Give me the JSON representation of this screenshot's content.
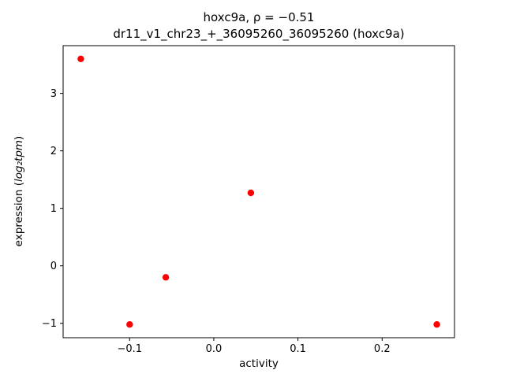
{
  "chart_data": {
    "type": "scatter",
    "title": "hoxc9a, ρ = −0.51",
    "subtitle": "dr11_v1_chr23_+_36095260_36095260 (hoxc9a)",
    "xlabel": "activity",
    "ylabel_prefix": "expression (",
    "ylabel_math": "log₂tpm",
    "ylabel_suffix": ")",
    "x": [
      -0.158,
      -0.1,
      -0.057,
      0.044,
      0.265
    ],
    "y": [
      3.6,
      -1.02,
      -0.2,
      1.27,
      -1.02
    ],
    "xlim": [
      -0.179,
      0.286
    ],
    "ylim": [
      -1.25,
      3.83
    ],
    "xticks": [
      -0.1,
      0.0,
      0.1,
      0.2
    ],
    "xtick_labels": [
      "−0.1",
      "0.0",
      "0.1",
      "0.2"
    ],
    "yticks": [
      -1,
      0,
      1,
      2,
      3
    ],
    "ytick_labels": [
      "−1",
      "0",
      "1",
      "2",
      "3"
    ],
    "marker_color": "#ff0000",
    "axis_color": "#000000",
    "background_color": "#ffffff",
    "grid": false,
    "legend": null
  }
}
